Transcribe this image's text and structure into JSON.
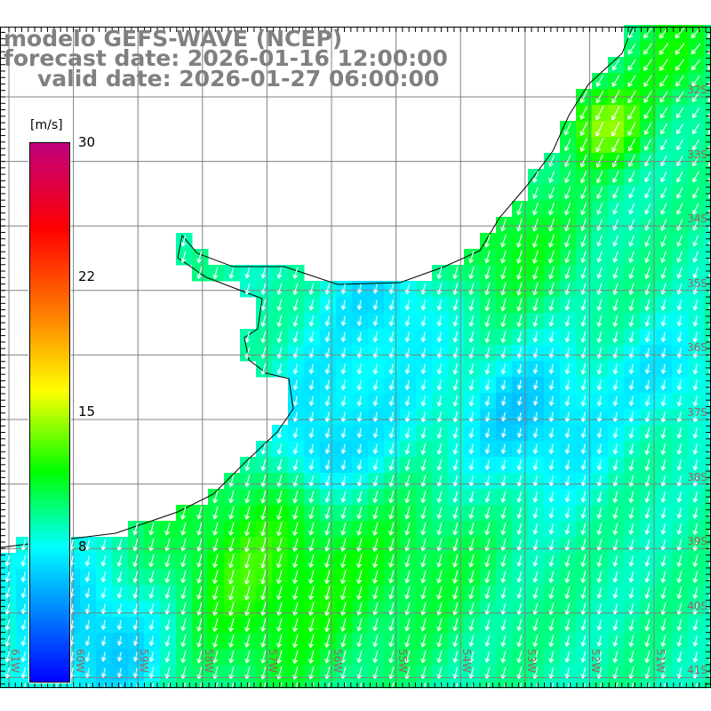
{
  "title": {
    "model": "modelo GEFS-WAVE (NCEP)",
    "forecast": "forecast date: 2026-01-16 12:00:00",
    "valid": "valid date: 2026-01-27 06:00:00"
  },
  "colorbar": {
    "unit": "[m/s]",
    "labels": [
      "30",
      "22",
      "15",
      "8"
    ],
    "min": 0,
    "max": 30,
    "colors": [
      "#0000ff",
      "#00ffff",
      "#00ff00",
      "#ffff00",
      "#ff8000",
      "#ff0000",
      "#c0007f"
    ]
  },
  "axes": {
    "lat_labels": [
      "32S",
      "33S",
      "34S",
      "35S",
      "36S",
      "37S",
      "38S",
      "39S",
      "40S",
      "41S"
    ],
    "lon_labels": [
      "61W",
      "60W",
      "59W",
      "58W",
      "57W",
      "56W",
      "55W",
      "54W",
      "53W",
      "52W",
      "51W"
    ]
  },
  "colors": {
    "title": "#808080",
    "grid": "#808080",
    "labels": "#a06060",
    "land": "#ffffff",
    "arrows": "#ffffff"
  }
}
